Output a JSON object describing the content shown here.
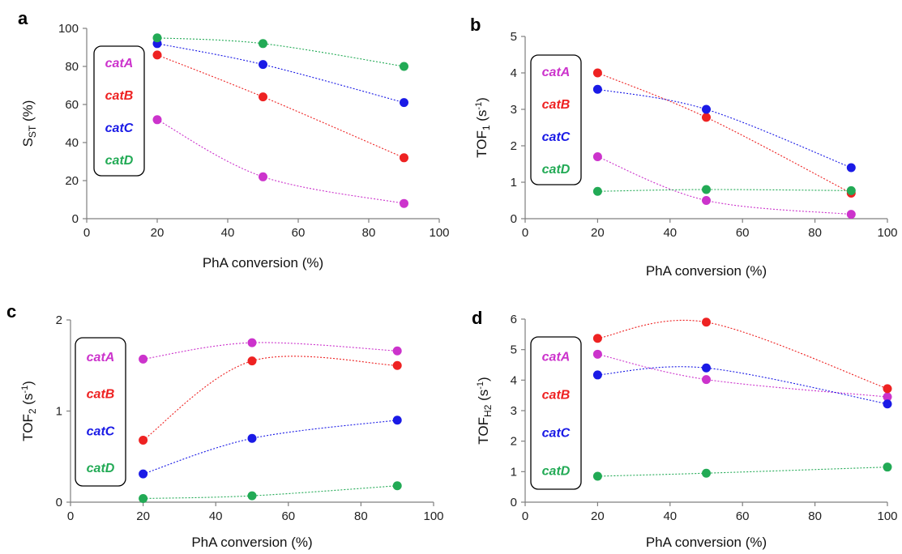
{
  "colors": {
    "catA": "#cc33cc",
    "catB": "#ee2222",
    "catC": "#1a1ae6",
    "catD": "#22aa55",
    "axis": "#7f7f7f"
  },
  "chart_data": [
    {
      "panel": "a",
      "type": "scatter",
      "xlabel": "PhA conversion (%)",
      "ylabel": "S_ST (%)",
      "ylabel_main": "S",
      "ylabel_sub": "ST",
      "ylabel_post": " (%)",
      "ylabel_sup": "",
      "ylabel_post2": "",
      "xlim": [
        0,
        100
      ],
      "ylim": [
        0,
        100
      ],
      "xticks": [
        0,
        20,
        40,
        60,
        80,
        100
      ],
      "yticks": [
        0,
        20,
        40,
        60,
        80,
        100
      ],
      "ytick_labels": [
        "0",
        "20",
        "40",
        "60",
        "80",
        "100"
      ],
      "legend": [
        "catA",
        "catB",
        "catC",
        "catD"
      ],
      "series": [
        {
          "name": "catA",
          "x": [
            20,
            50,
            90
          ],
          "y": [
            52,
            22,
            8
          ]
        },
        {
          "name": "catB",
          "x": [
            20,
            50,
            90
          ],
          "y": [
            86,
            64,
            32
          ]
        },
        {
          "name": "catC",
          "x": [
            20,
            50,
            90
          ],
          "y": [
            92,
            81,
            61
          ]
        },
        {
          "name": "catD",
          "x": [
            20,
            50,
            90
          ],
          "y": [
            95,
            92,
            80
          ]
        }
      ]
    },
    {
      "panel": "b",
      "type": "scatter",
      "xlabel": "PhA conversion (%)",
      "ylabel": "TOF1 (s-1)",
      "ylabel_main": "TOF",
      "ylabel_sub": "1",
      "ylabel_post": " (s",
      "ylabel_sup": "-1",
      "ylabel_post2": ")",
      "xlim": [
        0,
        100
      ],
      "ylim": [
        0,
        5
      ],
      "xticks": [
        0,
        20,
        40,
        60,
        80,
        100
      ],
      "yticks": [
        0,
        1,
        2,
        3,
        4,
        5
      ],
      "ytick_labels": [
        "0",
        "1",
        "2",
        "3",
        "4",
        "5"
      ],
      "legend": [
        "catA",
        "catB",
        "catC",
        "catD"
      ],
      "series": [
        {
          "name": "catA",
          "x": [
            20,
            50,
            90
          ],
          "y": [
            1.7,
            0.5,
            0.12
          ]
        },
        {
          "name": "catB",
          "x": [
            20,
            50,
            90
          ],
          "y": [
            4.0,
            2.78,
            0.7
          ]
        },
        {
          "name": "catC",
          "x": [
            20,
            50,
            90
          ],
          "y": [
            3.55,
            3.0,
            1.4
          ]
        },
        {
          "name": "catD",
          "x": [
            20,
            50,
            90
          ],
          "y": [
            0.75,
            0.8,
            0.77
          ]
        }
      ]
    },
    {
      "panel": "c",
      "type": "scatter",
      "xlabel": "PhA conversion (%)",
      "ylabel": "TOF2 (s-1)",
      "ylabel_main": "TOF",
      "ylabel_sub": "2",
      "ylabel_post": " (s",
      "ylabel_sup": "-1",
      "ylabel_post2": ")",
      "xlim": [
        0,
        100
      ],
      "ylim": [
        0,
        2
      ],
      "xticks": [
        0,
        20,
        40,
        60,
        80,
        100
      ],
      "yticks": [
        0,
        1,
        2
      ],
      "ytick_labels": [
        "0",
        "1",
        "2"
      ],
      "legend": [
        "catA",
        "catB",
        "catC",
        "catD"
      ],
      "series": [
        {
          "name": "catA",
          "x": [
            20,
            50,
            90
          ],
          "y": [
            1.57,
            1.75,
            1.66
          ]
        },
        {
          "name": "catB",
          "x": [
            20,
            50,
            90
          ],
          "y": [
            0.68,
            1.55,
            1.5
          ]
        },
        {
          "name": "catC",
          "x": [
            20,
            50,
            90
          ],
          "y": [
            0.31,
            0.7,
            0.9
          ]
        },
        {
          "name": "catD",
          "x": [
            20,
            50,
            90
          ],
          "y": [
            0.04,
            0.07,
            0.18
          ]
        }
      ]
    },
    {
      "panel": "d",
      "type": "scatter",
      "xlabel": "PhA conversion (%)",
      "ylabel": "TOFH2 (s-1)",
      "ylabel_main": "TOF",
      "ylabel_sub": "H2",
      "ylabel_post": " (s",
      "ylabel_sup": "-1",
      "ylabel_post2": ")",
      "xlim": [
        0,
        100
      ],
      "ylim": [
        0,
        6
      ],
      "xticks": [
        0,
        20,
        40,
        60,
        80,
        100
      ],
      "yticks": [
        0,
        1,
        2,
        3,
        4,
        5,
        6
      ],
      "ytick_labels": [
        "0",
        "1",
        "2",
        "3",
        "4",
        "5",
        "6"
      ],
      "legend": [
        "catA",
        "catB",
        "catC",
        "catD"
      ],
      "series": [
        {
          "name": "catA",
          "x": [
            20,
            50,
            100
          ],
          "y": [
            4.85,
            4.02,
            3.45
          ]
        },
        {
          "name": "catB",
          "x": [
            20,
            50,
            100
          ],
          "y": [
            5.37,
            5.9,
            3.72
          ]
        },
        {
          "name": "catC",
          "x": [
            20,
            50,
            100
          ],
          "y": [
            4.17,
            4.4,
            3.22
          ]
        },
        {
          "name": "catD",
          "x": [
            20,
            50,
            100
          ],
          "y": [
            0.85,
            0.95,
            1.15
          ]
        }
      ]
    }
  ]
}
